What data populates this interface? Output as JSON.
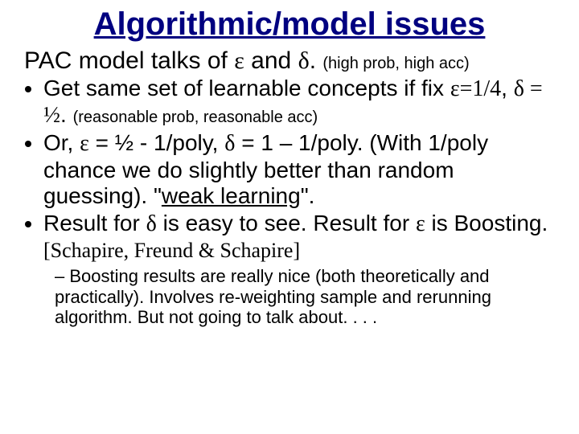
{
  "title": "Algorithmic/model issues",
  "title_fontsize": 40,
  "title_color": "#000080",
  "subtitle_prefix": "PAC model talks of ",
  "eps": "ε",
  "and_word": " and ",
  "delta": "δ",
  "period": ". ",
  "subtitle_suffix": "(high prob, high acc)",
  "subtitle_fontsize": 30,
  "small_fontsize": 20,
  "body_fontsize": 28,
  "sub_fontsize": 22,
  "bullets": [
    {
      "line1_a": "Get same set of learnable concepts if fix ",
      "eps_eq": "ε=1/4",
      "comma": ", ",
      "delta_eq": "δ = ½",
      "period": ". ",
      "reason": "(reasonable prob, reasonable acc)"
    },
    {
      "text_a": "Or, ",
      "eps": "ε",
      "text_b": " = ½ - 1/poly, ",
      "delta": "δ",
      "text_c": " = 1 – 1/poly.  (With 1/poly chance we do slightly better than random guessing).  \"",
      "weak": "weak learning",
      "text_d": "\"."
    },
    {
      "text_a": "Result for ",
      "delta": "δ",
      "text_b": " is easy to see.  Result for ",
      "eps": "ε",
      "text_c": " is Boosting. ",
      "cite": "[Schapire, Freund & Schapire]"
    }
  ],
  "subbullet": "Boosting results are really nice (both theoretically and practically).  Involves re-weighting sample and rerunning algorithm.  But not going to talk about. . . .",
  "colors": {
    "black": "#000000",
    "navy": "#000080",
    "underline": "#000080"
  }
}
